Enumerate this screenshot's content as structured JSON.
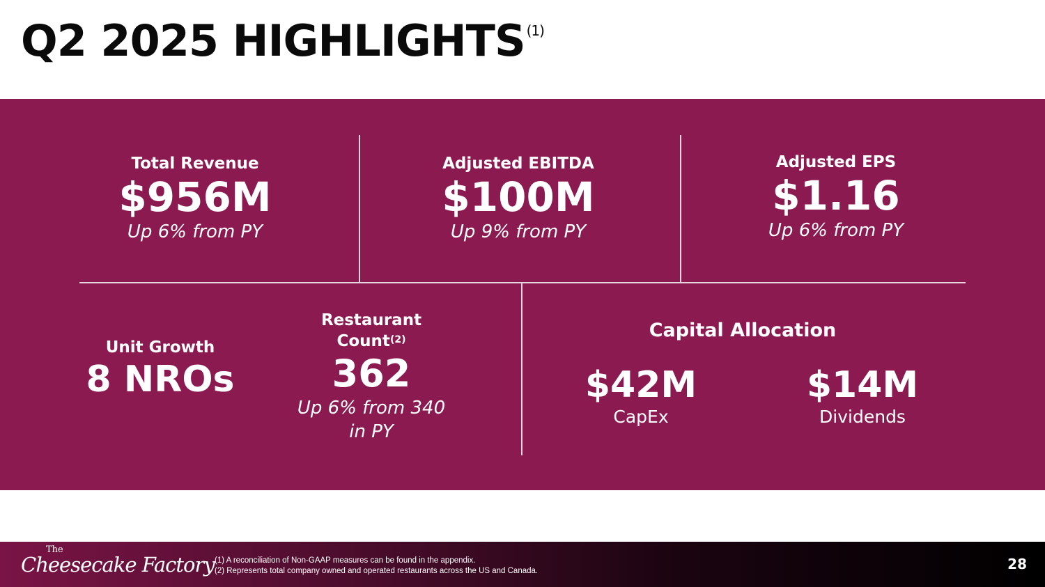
{
  "title": {
    "text": "Q2 2025 HIGHLIGHTS",
    "footnote_ref": "(1)"
  },
  "metrics": {
    "total_revenue": {
      "label": "Total Revenue",
      "value": "$956M",
      "sub": "Up 6% from PY"
    },
    "adjusted_ebitda": {
      "label": "Adjusted EBITDA",
      "value": "$100M",
      "sub": "Up 9% from PY"
    },
    "adjusted_eps": {
      "label": "Adjusted EPS",
      "value": "$1.16",
      "sub": "Up 6% from PY"
    },
    "unit_growth": {
      "label": "Unit Growth",
      "value": "8 NROs"
    },
    "restaurant_count": {
      "label_line1": "Restaurant",
      "label_line2": "Count",
      "footnote_ref": "(2)",
      "value": "362",
      "sub_line1": "Up 6% from 340",
      "sub_line2": "in PY"
    },
    "capital_allocation": {
      "label": "Capital Allocation",
      "capex": {
        "value": "$42M",
        "caption": "CapEx"
      },
      "dividends": {
        "value": "$14M",
        "caption": "Dividends"
      }
    }
  },
  "footer": {
    "logo_small": "The",
    "logo_text": "Cheesecake Factory",
    "footnotes": [
      "(1)  A reconciliation of Non-GAAP measures can be found in the appendix.",
      "(2)  Represents total company owned and operated restaurants across the US and Canada."
    ],
    "page_number": "28"
  },
  "colors": {
    "panel": "#8b1a51",
    "title_text": "#0a0a0a",
    "metric_text": "#ffffff"
  }
}
